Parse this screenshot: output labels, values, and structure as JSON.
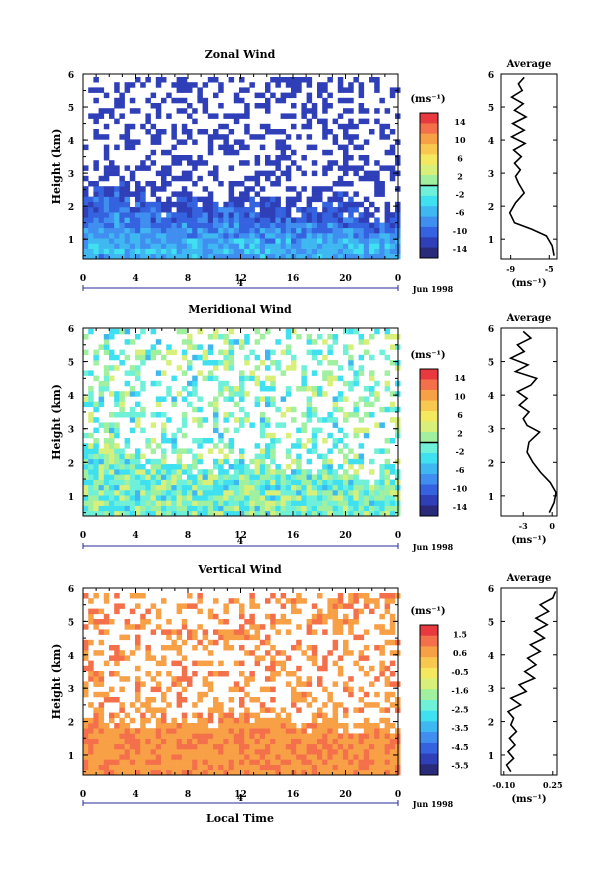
{
  "chart_data": [
    {
      "type": "heatmap",
      "title": "Zonal Wind",
      "ylabel": "Height (km)",
      "xticks": [
        "0",
        "4",
        "8",
        "12",
        "16",
        "20",
        "0"
      ],
      "yticks": [
        "1",
        "2",
        "3",
        "4",
        "5",
        "6"
      ],
      "xlim": [
        0,
        24
      ],
      "ylim": [
        0.4,
        6
      ],
      "date_marker": "4",
      "date_label": "Jun 1998",
      "colorbar": {
        "unit": "(ms⁻¹)",
        "ticks": [
          "14",
          "10",
          "6",
          "2",
          "-2",
          "-6",
          "-10",
          "-14"
        ],
        "range": [
          -16,
          16
        ],
        "zero_line": 2
      },
      "echo_top_km": [
        2.5,
        2.9,
        3.0,
        2.8,
        2.6,
        2.5,
        2.3,
        2.3,
        2.4,
        2.4,
        2.6,
        2.7,
        2.5,
        2.3,
        2.2,
        2.3,
        2.1,
        2.3,
        2.4,
        2.4,
        2.3,
        2.2,
        2.1,
        2.0,
        2.1
      ],
      "field_min": -13,
      "field_max": -3,
      "profile": {
        "title": "Average",
        "xlabel": "(ms⁻¹)",
        "xticks": [
          "-9",
          "-5"
        ],
        "xlim": [
          -10,
          -4.2
        ],
        "heights": [
          0.5,
          0.8,
          1.1,
          1.3,
          1.5,
          1.8,
          2.1,
          2.4,
          2.7,
          2.9,
          3.1,
          3.3,
          3.5,
          3.7,
          3.9,
          4.1,
          4.3,
          4.5,
          4.7,
          4.9,
          5.1,
          5.3,
          5.5,
          5.7,
          5.9
        ],
        "values": [
          -4.5,
          -4.7,
          -5.3,
          -6.8,
          -8.6,
          -9.1,
          -8.5,
          -7.6,
          -8.2,
          -8.5,
          -8.0,
          -8.6,
          -7.9,
          -8.7,
          -7.5,
          -8.9,
          -7.6,
          -8.8,
          -7.4,
          -8.6,
          -7.7,
          -8.9,
          -7.8,
          -8.2,
          -7.6
        ]
      }
    },
    {
      "type": "heatmap",
      "title": "Meridional Wind",
      "ylabel": "Height (km)",
      "xticks": [
        "0",
        "4",
        "8",
        "12",
        "16",
        "20",
        "0"
      ],
      "yticks": [
        "1",
        "2",
        "3",
        "4",
        "5",
        "6"
      ],
      "xlim": [
        0,
        24
      ],
      "ylim": [
        0.4,
        6
      ],
      "date_marker": "4",
      "date_label": "Jun 1998",
      "colorbar": {
        "unit": "(ms⁻¹)",
        "ticks": [
          "14",
          "10",
          "6",
          "2",
          "-2",
          "-6",
          "-10",
          "-14"
        ],
        "range": [
          -16,
          16
        ],
        "zero_line": 2
      },
      "echo_top_km": [
        3.0,
        3.1,
        2.9,
        2.7,
        2.5,
        2.3,
        2.2,
        2.3,
        2.1,
        2.0,
        2.1,
        2.2,
        2.3,
        2.2,
        2.1,
        2.0,
        2.1,
        2.2,
        2.1,
        2.3,
        2.1,
        2.0,
        1.9,
        1.9,
        2.0
      ],
      "field_min": -5,
      "field_max": 4,
      "profile": {
        "title": "Average",
        "xlabel": "(ms⁻¹)",
        "xticks": [
          "-3",
          "0"
        ],
        "xlim": [
          -5.3,
          0.5
        ],
        "heights": [
          0.5,
          0.8,
          1.1,
          1.4,
          1.7,
          2.0,
          2.3,
          2.6,
          2.9,
          3.1,
          3.3,
          3.5,
          3.7,
          3.9,
          4.1,
          4.3,
          4.5,
          4.7,
          4.9,
          5.1,
          5.3,
          5.5,
          5.7,
          5.9
        ],
        "values": [
          -0.3,
          0.2,
          0.4,
          -0.2,
          -1.2,
          -2.0,
          -2.6,
          -2.4,
          -1.3,
          -2.6,
          -3.0,
          -2.4,
          -3.4,
          -2.6,
          -3.6,
          -2.2,
          -1.6,
          -3.8,
          -2.5,
          -4.3,
          -2.9,
          -3.6,
          -2.2,
          -3.0
        ]
      }
    },
    {
      "type": "heatmap",
      "title": "Vertical Wind",
      "ylabel": "Height (km)",
      "xlabel": "Local Time",
      "xticks": [
        "0",
        "4",
        "8",
        "12",
        "16",
        "20",
        "0"
      ],
      "yticks": [
        "1",
        "2",
        "3",
        "4",
        "5",
        "6"
      ],
      "xlim": [
        0,
        24
      ],
      "ylim": [
        0.4,
        6
      ],
      "date_marker": "4",
      "date_label": "Jun 1998",
      "colorbar": {
        "unit": "(ms⁻¹)",
        "ticks": [
          "1.5",
          "0.6",
          "-0.5",
          "-1.6",
          "-2.5",
          "-3.5",
          "-4.5",
          "-5.5"
        ],
        "range": [
          -6.0,
          2.0
        ]
      },
      "echo_top_km": [
        2.5,
        2.7,
        2.4,
        2.3,
        2.2,
        2.2,
        2.3,
        2.2,
        2.1,
        2.3,
        2.4,
        2.5,
        2.6,
        2.4,
        2.3,
        2.5,
        2.3,
        2.2,
        2.1,
        2.2,
        2.3,
        2.1,
        2.0,
        2.1,
        2.1
      ],
      "field_min": 0.4,
      "field_max": 1.1,
      "profile": {
        "title": "Average",
        "xlabel": "(ms⁻¹)",
        "xticks": [
          "-0.10",
          "0.25"
        ],
        "xlim": [
          -0.12,
          0.28
        ],
        "heights": [
          0.5,
          0.7,
          0.9,
          1.1,
          1.3,
          1.5,
          1.7,
          1.9,
          2.1,
          2.3,
          2.5,
          2.7,
          2.9,
          3.1,
          3.3,
          3.5,
          3.7,
          3.9,
          4.1,
          4.3,
          4.5,
          4.7,
          4.9,
          5.1,
          5.3,
          5.5,
          5.7,
          5.9
        ],
        "values": [
          -0.05,
          -0.08,
          -0.03,
          -0.07,
          -0.02,
          -0.06,
          -0.01,
          -0.05,
          -0.03,
          -0.07,
          0.02,
          -0.05,
          0.06,
          0.01,
          0.12,
          0.05,
          0.13,
          0.07,
          0.16,
          0.09,
          0.19,
          0.12,
          0.21,
          0.13,
          0.22,
          0.16,
          0.25,
          0.27
        ]
      }
    }
  ]
}
